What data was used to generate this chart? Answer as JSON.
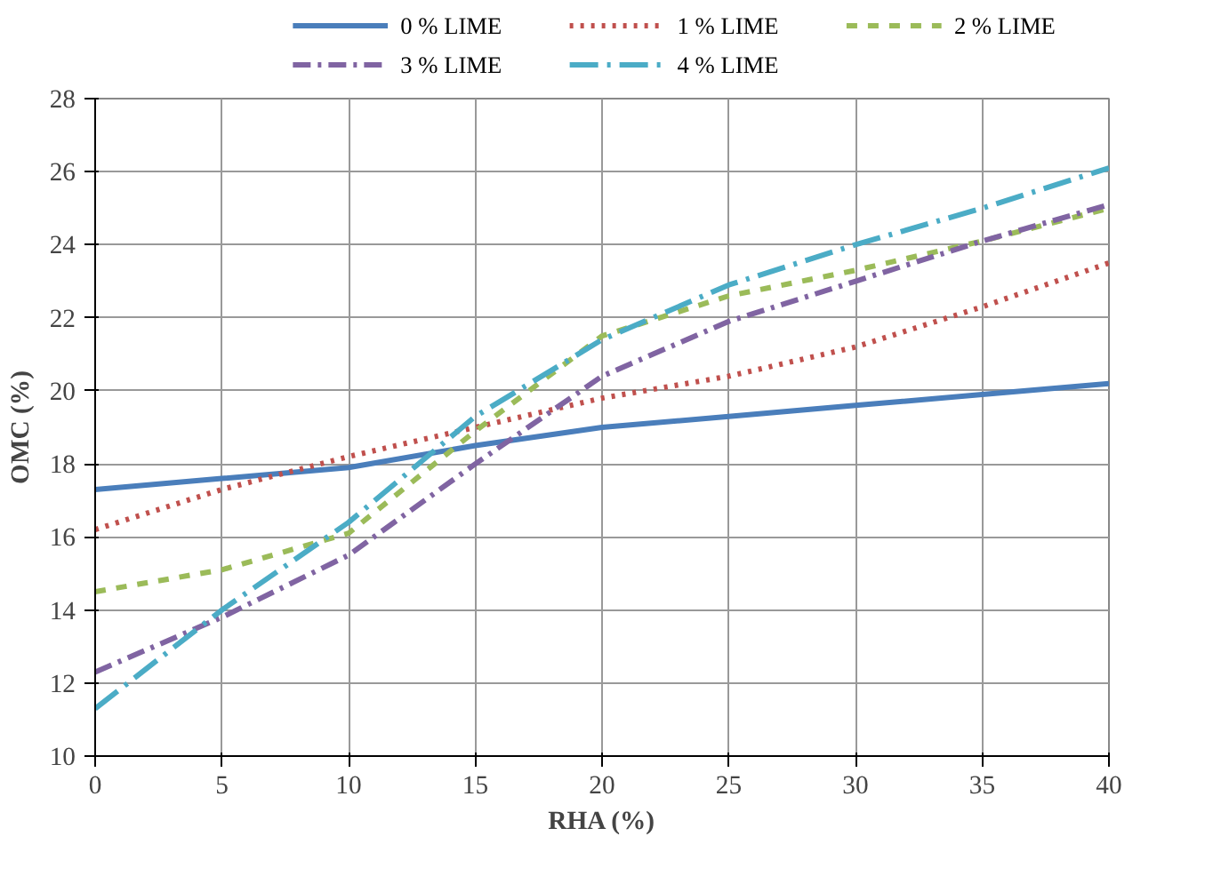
{
  "chart_data": {
    "type": "line",
    "xlabel": "RHA (%)",
    "ylabel": "OMC (%)",
    "x": [
      0,
      5,
      10,
      15,
      20,
      25,
      30,
      35,
      40
    ],
    "xlim": [
      0,
      40
    ],
    "xticks": [
      0,
      5,
      10,
      15,
      20,
      25,
      30,
      35,
      40
    ],
    "ylim": [
      10,
      28
    ],
    "yticks": [
      10,
      12,
      14,
      16,
      18,
      20,
      22,
      24,
      26,
      28
    ],
    "grid": true,
    "legend": "top",
    "marker": "none",
    "series": [
      {
        "name": "0 % LIME",
        "color": "#4a7ebb",
        "line_style": "solid",
        "values": [
          17.3,
          17.6,
          17.9,
          18.5,
          19.0,
          19.3,
          19.6,
          19.9,
          20.2
        ]
      },
      {
        "name": "1 % LIME",
        "color": "#c0504d",
        "line_style": "dotted",
        "values": [
          16.2,
          17.3,
          18.2,
          19.0,
          19.8,
          20.4,
          21.2,
          22.3,
          23.5
        ]
      },
      {
        "name": "2 % LIME",
        "color": "#9bbb59",
        "line_style": "dashed",
        "values": [
          14.5,
          15.1,
          16.1,
          18.9,
          21.5,
          22.6,
          23.3,
          24.1,
          25.0
        ]
      },
      {
        "name": "3 % LIME",
        "color": "#8064a2",
        "line_style": "dashdot",
        "values": [
          12.3,
          13.8,
          15.5,
          18.0,
          20.4,
          21.9,
          23.0,
          24.1,
          25.1
        ]
      },
      {
        "name": "4 % LIME",
        "color": "#4bacc6",
        "line_style": "dashdotlong",
        "values": [
          11.3,
          14.0,
          16.4,
          19.3,
          21.4,
          22.9,
          24.0,
          25.0,
          26.1
        ]
      }
    ]
  }
}
